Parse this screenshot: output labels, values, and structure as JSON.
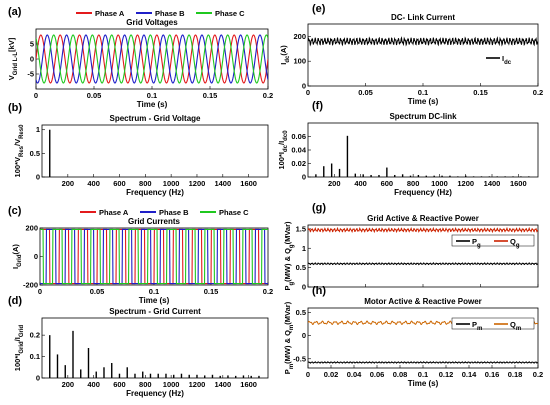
{
  "chart_data": [
    {
      "id": "a",
      "panel_label": "(a)",
      "type": "line",
      "title": "Grid Voltages",
      "xlabel": "Time (s)",
      "ylabel": "V",
      "ylabel_sub": "Grid L-L",
      "ylabel_suffix": "[kV]",
      "xlim": [
        0,
        0.2
      ],
      "ylim": [
        -10,
        10
      ],
      "yrange_visible": [
        -8,
        8
      ],
      "xticks": [
        0,
        0.05,
        0.1,
        0.15,
        0.2
      ],
      "xtick_labels": [
        "0",
        "0.05",
        "0.1",
        "0.15",
        "0.2"
      ],
      "yticks": [
        -5,
        0,
        5
      ],
      "ytick_labels": [
        "-5",
        "0",
        "5"
      ],
      "legend": {
        "placement": "top",
        "entries": [
          "Phase A",
          "Phase B",
          "Phase C"
        ]
      },
      "series": [
        {
          "name": "Phase A",
          "kind": "sine",
          "amplitude": 8,
          "frequency_hz": 60,
          "phase_deg": 0,
          "color": "#e31a1c"
        },
        {
          "name": "Phase B",
          "kind": "sine",
          "amplitude": 8,
          "frequency_hz": 60,
          "phase_deg": -120,
          "color": "#1f1fc8"
        },
        {
          "name": "Phase C",
          "kind": "sine",
          "amplitude": 8,
          "frequency_hz": 60,
          "phase_deg": 120,
          "color": "#1fc81f"
        }
      ]
    },
    {
      "id": "b",
      "panel_label": "(b)",
      "type": "bar",
      "title": "Spectrum - Grid Voltage",
      "xlabel": "Frequency (Hz)",
      "ylabel": "100*V",
      "ylabel_sub": "Res",
      "ylabel_mid": "/V",
      "ylabel_sub2": "Res0",
      "xlim": [
        0,
        1750
      ],
      "ylim": [
        0,
        1.1
      ],
      "xticks": [
        200,
        400,
        600,
        800,
        1000,
        1200,
        1400,
        1600
      ],
      "xtick_labels": [
        "200",
        "400",
        "600",
        "800",
        "1000",
        "1200",
        "1400",
        "1600"
      ],
      "yticks": [
        0,
        0.5,
        1
      ],
      "ytick_labels": [
        "0",
        "0.5",
        "1"
      ],
      "x": [
        60
      ],
      "values": [
        1.0
      ],
      "color": "#000000"
    },
    {
      "id": "c",
      "panel_label": "(c)",
      "type": "line",
      "title": "Grid Currents",
      "xlabel": "Time (s)",
      "ylabel": "I",
      "ylabel_sub": "Grid",
      "ylabel_suffix": "(A)",
      "xlim": [
        0,
        0.2
      ],
      "ylim": [
        -200,
        200
      ],
      "xticks": [
        0,
        0.05,
        0.1,
        0.15,
        0.2
      ],
      "xtick_labels": [
        "0",
        "0.05",
        "0.1",
        "0.15",
        "0.2"
      ],
      "yticks": [
        -200,
        0,
        200
      ],
      "ytick_labels": [
        "-200",
        "0",
        "200"
      ],
      "legend": {
        "placement": "top",
        "entries": [
          "Phase A",
          "Phase B",
          "Phase C"
        ]
      },
      "series": [
        {
          "name": "Phase A",
          "kind": "square",
          "amplitude": 190,
          "frequency_hz": 60,
          "phase_deg": 0,
          "color": "#e31a1c"
        },
        {
          "name": "Phase B",
          "kind": "square",
          "amplitude": 190,
          "frequency_hz": 60,
          "phase_deg": -120,
          "color": "#1f1fc8"
        },
        {
          "name": "Phase C",
          "kind": "square",
          "amplitude": 190,
          "frequency_hz": 60,
          "phase_deg": 120,
          "color": "#1fc81f"
        }
      ]
    },
    {
      "id": "d",
      "panel_label": "(d)",
      "type": "bar",
      "title": "Spectrum - Grid Current",
      "xlabel": "Frequency (Hz)",
      "ylabel": "100*I",
      "ylabel_sub": "Grid",
      "ylabel_mid": "/I",
      "ylabel_sub2": "Grid",
      "xlim": [
        0,
        1750
      ],
      "ylim": [
        0,
        0.28
      ],
      "xticks": [
        200,
        400,
        600,
        800,
        1000,
        1200,
        1400,
        1600
      ],
      "xtick_labels": [
        "200",
        "400",
        "600",
        "800",
        "1000",
        "1200",
        "1400",
        "1600"
      ],
      "yticks": [
        0,
        0.1,
        0.2
      ],
      "ytick_labels": [
        "0",
        "0.1",
        "0.2"
      ],
      "x": [
        60,
        120,
        180,
        240,
        300,
        360,
        420,
        480,
        540,
        600,
        660,
        720,
        780,
        840,
        900,
        960,
        1020,
        1080,
        1140,
        1200,
        1260,
        1320,
        1380,
        1440,
        1500,
        1560,
        1620,
        1680
      ],
      "values": [
        0.2,
        0.11,
        0.06,
        0.22,
        0.04,
        0.14,
        0.03,
        0.05,
        0.07,
        0.02,
        0.05,
        0.02,
        0.03,
        0.02,
        0.02,
        0.02,
        0.015,
        0.02,
        0.015,
        0.015,
        0.012,
        0.015,
        0.01,
        0.012,
        0.01,
        0.012,
        0.01,
        0.01
      ],
      "color": "#000000"
    },
    {
      "id": "e",
      "panel_label": "(e)",
      "type": "line",
      "title": "DC- Link Current",
      "xlabel": "Time (s)",
      "ylabel": "I",
      "ylabel_sub": "dc",
      "ylabel_suffix": "(A)",
      "xlim": [
        0,
        0.2
      ],
      "ylim": [
        0,
        250
      ],
      "xticks": [
        0,
        0.05,
        0.1,
        0.15,
        0.2
      ],
      "xtick_labels": [
        "0",
        "0.05",
        "0.1",
        "0.15",
        "0.2"
      ],
      "yticks": [
        0,
        100,
        200
      ],
      "ytick_labels": [
        "0",
        "100",
        "200"
      ],
      "legend": {
        "placement": "inside-right",
        "entries": [
          "I"
        ],
        "entry_sub": [
          "dc"
        ]
      },
      "series": [
        {
          "name": "I",
          "name_sub": "dc",
          "kind": "ripple",
          "mean": 180,
          "ripple": 10,
          "frequency_hz": 360,
          "color": "#000000"
        }
      ]
    },
    {
      "id": "f",
      "panel_label": "(f)",
      "type": "bar",
      "title": "Spectrum DC-link",
      "xlabel": "Frequency (Hz)",
      "ylabel": "100*I",
      "ylabel_sub": "dc",
      "ylabel_mid": "/I",
      "ylabel_sub2": "dc0",
      "xlim": [
        0,
        1750
      ],
      "ylim": [
        0,
        0.08
      ],
      "xticks": [
        200,
        400,
        600,
        800,
        1000,
        1200,
        1400,
        1600
      ],
      "xtick_labels": [
        "200",
        "400",
        "600",
        "800",
        "1000",
        "1200",
        "1400",
        "1600"
      ],
      "yticks": [
        0,
        0.02,
        0.04,
        0.06
      ],
      "ytick_labels": [
        "0",
        "0.02",
        "0.04",
        "0.06"
      ],
      "x": [
        60,
        120,
        180,
        240,
        300,
        360,
        420,
        480,
        540,
        600,
        660,
        720,
        780,
        840,
        900,
        960,
        1020,
        1080,
        1140,
        1200,
        1260,
        1320,
        1380,
        1440,
        1500,
        1560,
        1620,
        1680
      ],
      "values": [
        0.004,
        0.016,
        0.02,
        0.012,
        0.061,
        0.005,
        0.004,
        0.003,
        0.003,
        0.014,
        0.003,
        0.004,
        0.002,
        0.003,
        0.002,
        0.002,
        0.002,
        0.002,
        0.001,
        0.002,
        0.001,
        0.001,
        0.001,
        0.001,
        0.001,
        0.001,
        0.001,
        0.001
      ],
      "color": "#000000"
    },
    {
      "id": "g",
      "panel_label": "(g)",
      "type": "line",
      "title": "Grid Active & Reactive Power",
      "xlabel": "",
      "ylabel": "P",
      "ylabel_sub": "g",
      "ylabel_mid": "(MW) & Q",
      "ylabel_sub2": "g",
      "ylabel_suffix": "(MVar)",
      "xlim": [
        0,
        0.2
      ],
      "ylim": [
        0,
        1.6
      ],
      "xticks": [
        0,
        0.05,
        0.1,
        0.15,
        0.2
      ],
      "xtick_labels": [],
      "yticks": [
        0,
        0.5,
        1,
        1.5
      ],
      "ytick_labels": [
        "0",
        "0.5",
        "1",
        "1.5"
      ],
      "legend": {
        "placement": "inside-right",
        "entries": [
          "P",
          "Q"
        ],
        "entry_sub": [
          "g",
          "g"
        ]
      },
      "series": [
        {
          "name": "P",
          "name_sub": "g",
          "kind": "ripple",
          "mean": 0.6,
          "ripple": 0.015,
          "frequency_hz": 360,
          "color": "#000000"
        },
        {
          "name": "Q",
          "name_sub": "g",
          "kind": "ripple",
          "mean": 1.47,
          "ripple": 0.03,
          "frequency_hz": 360,
          "color": "#cc2200"
        }
      ]
    },
    {
      "id": "h",
      "panel_label": "(h)",
      "type": "line",
      "title": "Motor Active & Reactive Power",
      "xlabel": "Time (s)",
      "ylabel": "P",
      "ylabel_sub": "m",
      "ylabel_mid": "(MW) & Q",
      "ylabel_sub2": "m",
      "ylabel_suffix": "(MVar)",
      "xlim": [
        0,
        0.2
      ],
      "ylim": [
        -0.7,
        0.6
      ],
      "xticks": [
        0,
        0.02,
        0.04,
        0.06,
        0.08,
        0.1,
        0.12,
        0.14,
        0.16,
        0.18,
        0.2
      ],
      "xtick_labels": [
        "0",
        "0.02",
        "0.04",
        "0.06",
        "0.08",
        "0.1",
        "0.12",
        "0.14",
        "0.16",
        "0.18",
        "0.2"
      ],
      "yticks": [
        -0.5,
        0,
        0.5
      ],
      "ytick_labels": [
        "-0.5",
        "0",
        "0.5"
      ],
      "legend": {
        "placement": "inside-right",
        "entries": [
          "P",
          "Q"
        ],
        "entry_sub": [
          "m",
          "m"
        ]
      },
      "series": [
        {
          "name": "P",
          "name_sub": "m",
          "kind": "ripple",
          "mean": -0.58,
          "ripple": 0.01,
          "frequency_hz": 360,
          "color": "#000000"
        },
        {
          "name": "Q",
          "name_sub": "m",
          "kind": "ripple",
          "mean": 0.28,
          "ripple": 0.025,
          "frequency_hz": 180,
          "color": "#cc6600"
        }
      ]
    }
  ]
}
